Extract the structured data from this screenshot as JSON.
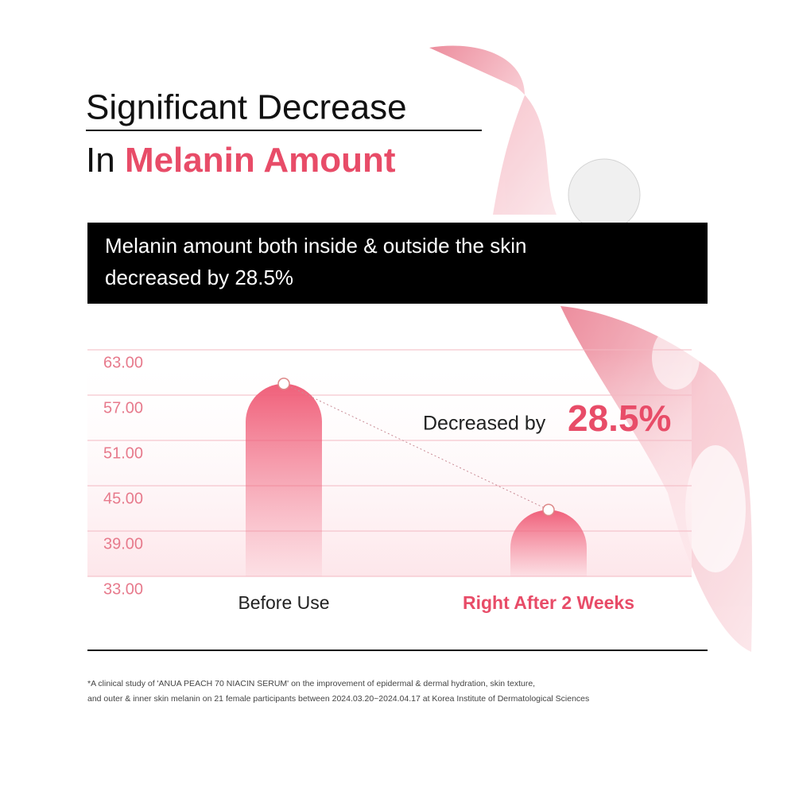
{
  "chart_data": {
    "type": "bar",
    "title_line1": "Significant Decrease",
    "title_line2_prefix": "In",
    "title_line2_highlight": "Melanin Amount",
    "subtitle": [
      "Melanin amount both inside & outside the skin",
      "decreased by 28.5%"
    ],
    "annotation": "Decreased by",
    "annotation_value": "28.5%",
    "categories": [
      "Before Use",
      "Right After 2 Weeks"
    ],
    "values": [
      58.5,
      41.8
    ],
    "color": "#f0607a",
    "ylim": [
      33,
      63
    ],
    "yticks": [
      {
        "value": 33,
        "label": "33.00"
      },
      {
        "value": 39,
        "label": "39.00"
      },
      {
        "value": 45,
        "label": "45.00"
      },
      {
        "value": 51,
        "label": "51.00"
      },
      {
        "value": 57,
        "label": "57.00"
      },
      {
        "value": 63,
        "label": "63.00"
      }
    ],
    "grid": true,
    "footnote": [
      "*A clinical study of 'ANUA PEACH 70 NIACIN SERUM' on the improvement of epidermal & dermal hydration, skin texture,",
      "and outer & inner skin melanin on 21 female participants between 2024.03.20~2024.04.17 at Korea Institute of Dermatological Sciences"
    ]
  }
}
